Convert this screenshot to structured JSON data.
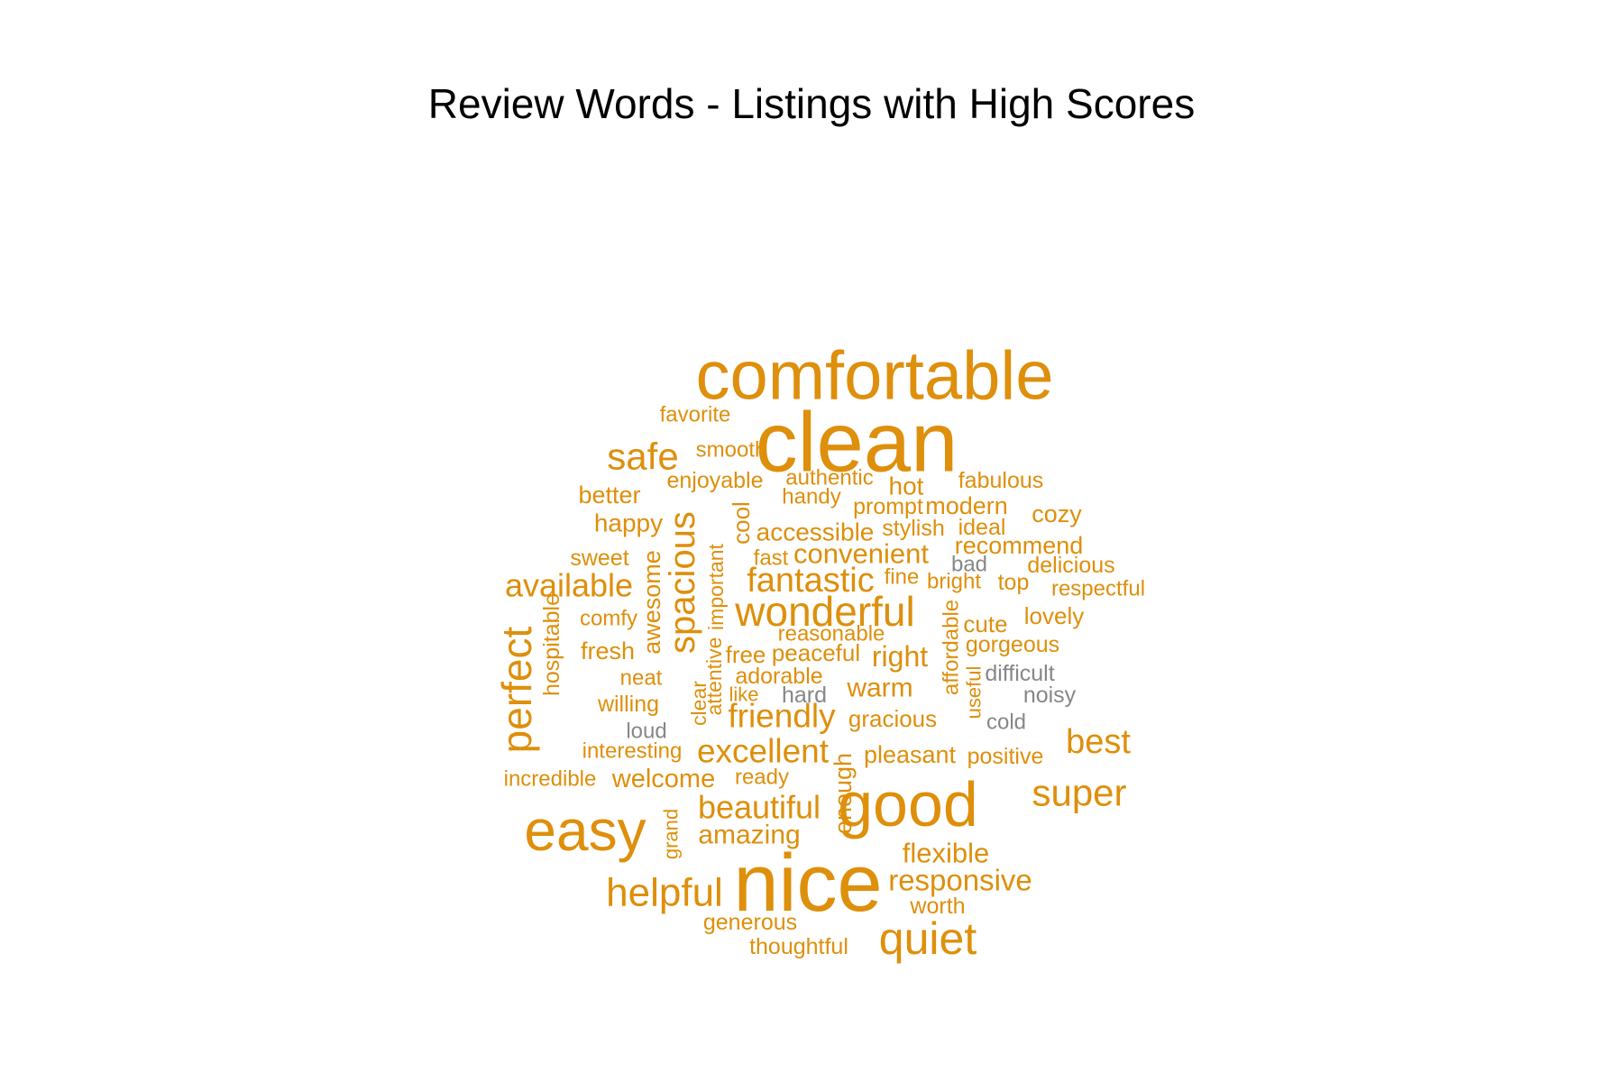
{
  "chart_data": {
    "type": "wordcloud",
    "title": "Review Words - Listings with High Scores",
    "colors": {
      "positive": "#de8f0b",
      "negative": "#878787"
    },
    "words": [
      {
        "text": "comfortable",
        "sentiment": "positive",
        "weight": 80
      },
      {
        "text": "clean",
        "sentiment": "positive",
        "weight": 100
      },
      {
        "text": "favorite",
        "sentiment": "positive",
        "weight": 12
      },
      {
        "text": "safe",
        "sentiment": "positive",
        "weight": 32
      },
      {
        "text": "smooth",
        "sentiment": "positive",
        "weight": 12
      },
      {
        "text": "enjoyable",
        "sentiment": "positive",
        "weight": 13
      },
      {
        "text": "authentic",
        "sentiment": "positive",
        "weight": 12
      },
      {
        "text": "hot",
        "sentiment": "positive",
        "weight": 14
      },
      {
        "text": "fabulous",
        "sentiment": "positive",
        "weight": 13
      },
      {
        "text": "better",
        "sentiment": "positive",
        "weight": 15
      },
      {
        "text": "handy",
        "sentiment": "positive",
        "weight": 12
      },
      {
        "text": "prompt",
        "sentiment": "positive",
        "weight": 13
      },
      {
        "text": "modern",
        "sentiment": "positive",
        "weight": 15
      },
      {
        "text": "happy",
        "sentiment": "positive",
        "weight": 15
      },
      {
        "text": "cozy",
        "sentiment": "positive",
        "weight": 15
      },
      {
        "text": "spacious",
        "sentiment": "positive",
        "weight": 38
      },
      {
        "text": "cool",
        "sentiment": "positive",
        "weight": 15
      },
      {
        "text": "accessible",
        "sentiment": "positive",
        "weight": 15
      },
      {
        "text": "stylish",
        "sentiment": "positive",
        "weight": 13
      },
      {
        "text": "ideal",
        "sentiment": "positive",
        "weight": 13
      },
      {
        "text": "awesome",
        "sentiment": "positive",
        "weight": 15
      },
      {
        "text": "important",
        "sentiment": "positive",
        "weight": 13
      },
      {
        "text": "sweet",
        "sentiment": "positive",
        "weight": 14
      },
      {
        "text": "fast",
        "sentiment": "positive",
        "weight": 13
      },
      {
        "text": "convenient",
        "sentiment": "positive",
        "weight": 17
      },
      {
        "text": "recommend",
        "sentiment": "positive",
        "weight": 16
      },
      {
        "text": "bad",
        "sentiment": "negative",
        "weight": 13
      },
      {
        "text": "delicious",
        "sentiment": "positive",
        "weight": 14
      },
      {
        "text": "available",
        "sentiment": "positive",
        "weight": 24
      },
      {
        "text": "fantastic",
        "sentiment": "positive",
        "weight": 26
      },
      {
        "text": "fine",
        "sentiment": "positive",
        "weight": 13
      },
      {
        "text": "bright",
        "sentiment": "positive",
        "weight": 13
      },
      {
        "text": "top",
        "sentiment": "positive",
        "weight": 13
      },
      {
        "text": "respectful",
        "sentiment": "positive",
        "weight": 13
      },
      {
        "text": "wonderful",
        "sentiment": "positive",
        "weight": 36
      },
      {
        "text": "hospitable",
        "sentiment": "positive",
        "weight": 14
      },
      {
        "text": "comfy",
        "sentiment": "positive",
        "weight": 13
      },
      {
        "text": "affordable",
        "sentiment": "positive",
        "weight": 13
      },
      {
        "text": "lovely",
        "sentiment": "positive",
        "weight": 16
      },
      {
        "text": "perfect",
        "sentiment": "positive",
        "weight": 36
      },
      {
        "text": "cute",
        "sentiment": "positive",
        "weight": 14
      },
      {
        "text": "reasonable",
        "sentiment": "positive",
        "weight": 13
      },
      {
        "text": "fresh",
        "sentiment": "positive",
        "weight": 14
      },
      {
        "text": "free",
        "sentiment": "positive",
        "weight": 14
      },
      {
        "text": "peaceful",
        "sentiment": "positive",
        "weight": 14
      },
      {
        "text": "right",
        "sentiment": "positive",
        "weight": 18
      },
      {
        "text": "gorgeous",
        "sentiment": "positive",
        "weight": 14
      },
      {
        "text": "attentive",
        "sentiment": "positive",
        "weight": 13
      },
      {
        "text": "difficult",
        "sentiment": "negative",
        "weight": 13
      },
      {
        "text": "neat",
        "sentiment": "positive",
        "weight": 13
      },
      {
        "text": "adorable",
        "sentiment": "positive",
        "weight": 14
      },
      {
        "text": "clear",
        "sentiment": "positive",
        "weight": 13
      },
      {
        "text": "useful",
        "sentiment": "positive",
        "weight": 13
      },
      {
        "text": "warm",
        "sentiment": "positive",
        "weight": 18
      },
      {
        "text": "like",
        "sentiment": "positive",
        "weight": 13
      },
      {
        "text": "hard",
        "sentiment": "negative",
        "weight": 14
      },
      {
        "text": "noisy",
        "sentiment": "negative",
        "weight": 14
      },
      {
        "text": "willing",
        "sentiment": "positive",
        "weight": 14
      },
      {
        "text": "friendly",
        "sentiment": "positive",
        "weight": 26
      },
      {
        "text": "gracious",
        "sentiment": "positive",
        "weight": 14
      },
      {
        "text": "cold",
        "sentiment": "negative",
        "weight": 13
      },
      {
        "text": "loud",
        "sentiment": "negative",
        "weight": 13
      },
      {
        "text": "best",
        "sentiment": "positive",
        "weight": 24
      },
      {
        "text": "interesting",
        "sentiment": "positive",
        "weight": 13
      },
      {
        "text": "excellent",
        "sentiment": "positive",
        "weight": 24
      },
      {
        "text": "enough",
        "sentiment": "positive",
        "weight": 14
      },
      {
        "text": "pleasant",
        "sentiment": "positive",
        "weight": 15
      },
      {
        "text": "positive",
        "sentiment": "positive",
        "weight": 13
      },
      {
        "text": "incredible",
        "sentiment": "positive",
        "weight": 13
      },
      {
        "text": "welcome",
        "sentiment": "positive",
        "weight": 17
      },
      {
        "text": "ready",
        "sentiment": "positive",
        "weight": 14
      },
      {
        "text": "super",
        "sentiment": "positive",
        "weight": 28
      },
      {
        "text": "good",
        "sentiment": "positive",
        "weight": 82
      },
      {
        "text": "beautiful",
        "sentiment": "positive",
        "weight": 26
      },
      {
        "text": "easy",
        "sentiment": "positive",
        "weight": 64
      },
      {
        "text": "grand",
        "sentiment": "positive",
        "weight": 13
      },
      {
        "text": "amazing",
        "sentiment": "positive",
        "weight": 20
      },
      {
        "text": "flexible",
        "sentiment": "positive",
        "weight": 18
      },
      {
        "text": "nice",
        "sentiment": "positive",
        "weight": 90
      },
      {
        "text": "helpful",
        "sentiment": "positive",
        "weight": 34
      },
      {
        "text": "responsive",
        "sentiment": "positive",
        "weight": 20
      },
      {
        "text": "worth",
        "sentiment": "positive",
        "weight": 14
      },
      {
        "text": "generous",
        "sentiment": "positive",
        "weight": 14
      },
      {
        "text": "quiet",
        "sentiment": "positive",
        "weight": 38
      },
      {
        "text": "thoughtful",
        "sentiment": "positive",
        "weight": 14
      }
    ]
  }
}
